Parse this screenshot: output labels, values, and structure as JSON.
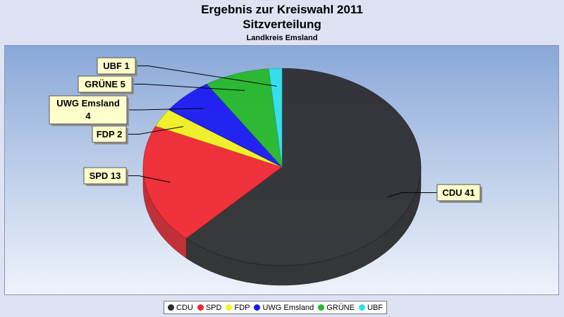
{
  "header": {
    "title_line1": "Ergebnis zur Kreiswahl 2011",
    "title_line2": "Sitzverteilung",
    "subtitle": "Landkreis Emsland"
  },
  "chart_data": {
    "type": "pie",
    "style": "3d",
    "title": "Ergebnis zur Kreiswahl 2011 Sitzverteilung",
    "subtitle": "Landkreis Emsland",
    "legend_position": "bottom",
    "series": [
      {
        "name": "CDU",
        "value": 41,
        "label": "CDU 41",
        "color": "#2b2b2e"
      },
      {
        "name": "SPD",
        "value": 13,
        "label": "SPD 13",
        "color": "#f2262d"
      },
      {
        "name": "FDP",
        "value": 2,
        "label": "FDP 2",
        "color": "#f4f21e"
      },
      {
        "name": "UWG Emsland",
        "value": 4,
        "label": "UWG Emsland 4",
        "color": "#1818f2"
      },
      {
        "name": "GRÜNE",
        "value": 5,
        "label": "GRÜNE 5",
        "color": "#24b828"
      },
      {
        "name": "UBF",
        "value": 1,
        "label": "UBF 1",
        "color": "#2ee2ee"
      }
    ]
  },
  "colors": {
    "label_box_fill": "#ffffcc",
    "background": "#dde3f3"
  }
}
